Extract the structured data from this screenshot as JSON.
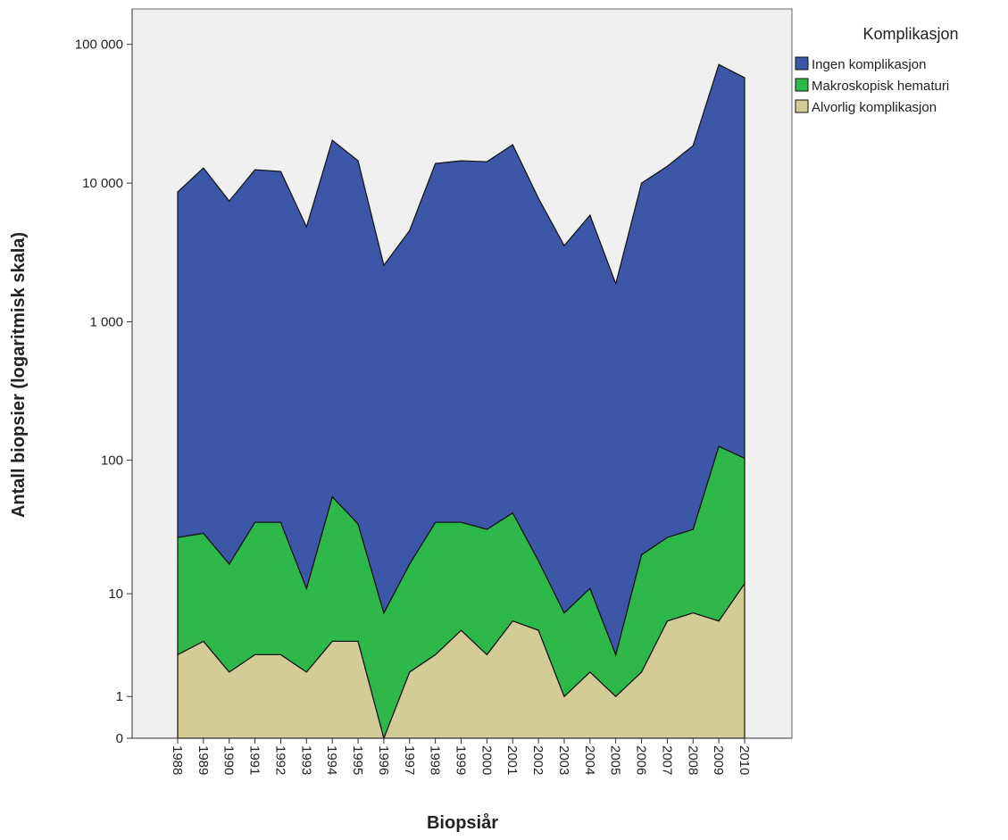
{
  "chart_data": {
    "type": "stacked_area",
    "x_label": "Biopsiår",
    "y_label": "Antall biopsier (logaritmisk skala)",
    "legend_title": "Komplikasjon",
    "legend": "outside-right",
    "yscale": "symlog",
    "categories": [
      "1988",
      "1989",
      "1990",
      "1991",
      "1992",
      "1993",
      "1994",
      "1995",
      "1996",
      "1997",
      "1998",
      "1999",
      "2000",
      "2001",
      "2002",
      "2003",
      "2004",
      "2005",
      "2006",
      "2007",
      "2008",
      "2009",
      "2010"
    ],
    "series": [
      {
        "name": "Ingen komplikasjon",
        "color": "#3c56a8",
        "values": [
          8600,
          12830,
          7410,
          12450,
          12100,
          4830,
          20320,
          14460,
          2550,
          4540,
          13800,
          14460,
          14230,
          18880,
          7760,
          3540,
          5860,
          1880,
          9980,
          13210,
          18590,
          71520,
          57290
        ]
      },
      {
        "name": "Makroskopisk hematuri",
        "color": "#2fb84a",
        "values": [
          24,
          25,
          15,
          32,
          32,
          9,
          50,
          30,
          7,
          15,
          32,
          30,
          28,
          35,
          13,
          6,
          9,
          2,
          18,
          21,
          24,
          120,
          91
        ]
      },
      {
        "name": "Alvorlig komplikasjon",
        "color": "#d4cc97",
        "values": [
          3,
          4,
          2,
          3,
          3,
          2,
          4,
          4,
          0,
          2,
          3,
          5,
          3,
          6,
          5,
          1,
          2,
          1,
          2,
          6,
          7,
          6,
          12
        ]
      }
    ],
    "ylim": [
      0,
      180000
    ],
    "yticks": [
      0,
      1,
      10,
      100,
      {
        "value": 1000,
        "label": "1 000"
      },
      {
        "value": 10000,
        "label": "10 000"
      },
      {
        "value": 100000,
        "label": "100 000"
      }
    ]
  }
}
